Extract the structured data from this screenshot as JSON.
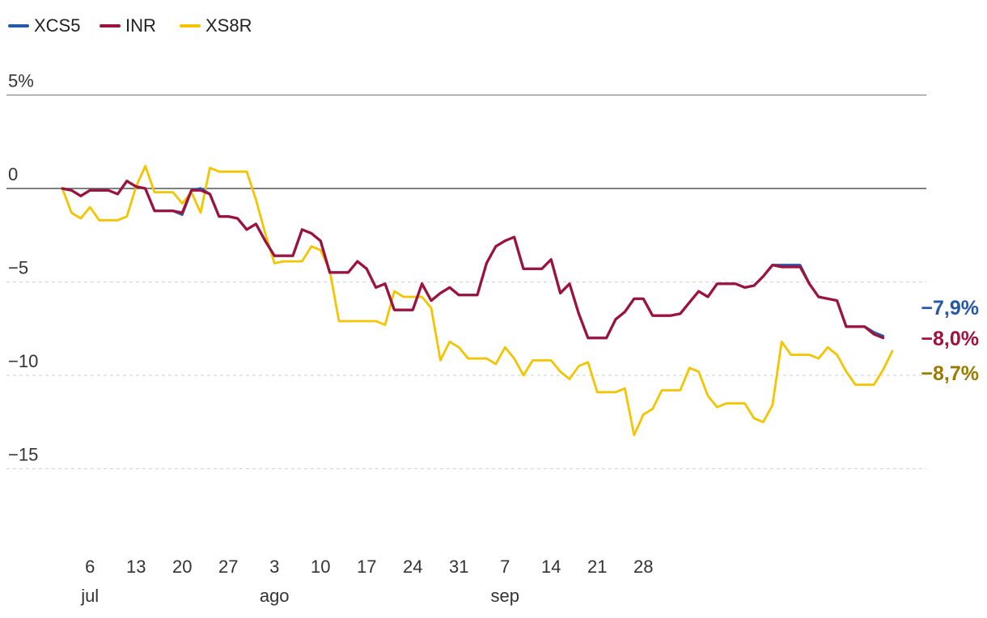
{
  "chart_data": {
    "type": "line",
    "title": "",
    "xlabel": "",
    "ylabel": "",
    "legend_position": "top-left",
    "ylim": [
      -19,
      5
    ],
    "y_ticks": [
      {
        "value": 5,
        "label": "5%"
      },
      {
        "value": 0,
        "label": "0"
      },
      {
        "value": -5,
        "label": "−5"
      },
      {
        "value": -10,
        "label": "−10"
      },
      {
        "value": -15,
        "label": "−15"
      }
    ],
    "x_ticks": [
      {
        "index": 3,
        "label": "6",
        "month": "jul"
      },
      {
        "index": 8,
        "label": "13"
      },
      {
        "index": 13,
        "label": "20"
      },
      {
        "index": 18,
        "label": "27"
      },
      {
        "index": 23,
        "label": "3",
        "month": "ago"
      },
      {
        "index": 28,
        "label": "10"
      },
      {
        "index": 33,
        "label": "17"
      },
      {
        "index": 38,
        "label": "24"
      },
      {
        "index": 43,
        "label": "31"
      },
      {
        "index": 48,
        "label": "7",
        "month": "sep"
      },
      {
        "index": 53,
        "label": "14"
      },
      {
        "index": 58,
        "label": "21"
      },
      {
        "index": 63,
        "label": "28"
      }
    ],
    "series": [
      {
        "name": "XCS5",
        "color": "#2558a8",
        "end_label": "−7,9%",
        "values": [
          0,
          -0.1,
          -0.4,
          -0.1,
          -0.1,
          -0.1,
          -0.3,
          0.4,
          0.1,
          0,
          -1.2,
          -1.2,
          -1.2,
          -1.4,
          -0.1,
          0,
          -0.3,
          -1.5,
          -1.5,
          -1.6,
          -2.2,
          -1.9,
          -2.8,
          -3.6,
          -3.6,
          -3.6,
          -2.2,
          -2.4,
          -2.8,
          -4.5,
          -4.5,
          -4.5,
          -3.9,
          -4.3,
          -5.3,
          -5.1,
          -6.5,
          -6.5,
          -6.5,
          -5.1,
          -6.0,
          -5.6,
          -5.3,
          -5.7,
          -5.7,
          -5.7,
          -4.0,
          -3.1,
          -2.8,
          -2.6,
          -4.3,
          -4.3,
          -4.3,
          -3.8,
          -5.6,
          -5.1,
          -6.7,
          -8.0,
          -8.0,
          -8.0,
          -7.0,
          -6.6,
          -5.9,
          -5.9,
          -6.8,
          -6.8,
          -6.8,
          -6.7,
          -6.1,
          -5.5,
          -5.8,
          -5.1,
          -5.1,
          -5.1,
          -5.3,
          -5.2,
          -4.7,
          -4.1,
          -4.1,
          -4.1,
          -4.1,
          -5.1,
          -5.8,
          -5.9,
          -6.0,
          -7.4,
          -7.4,
          -7.4,
          -7.7,
          -7.9
        ]
      },
      {
        "name": "INR",
        "color": "#a0123e",
        "end_label": "−8,0%",
        "values": [
          0,
          -0.1,
          -0.4,
          -0.1,
          -0.1,
          -0.1,
          -0.3,
          0.4,
          0.1,
          0,
          -1.2,
          -1.2,
          -1.2,
          -1.3,
          -0.1,
          -0.1,
          -0.3,
          -1.5,
          -1.5,
          -1.6,
          -2.2,
          -1.9,
          -2.8,
          -3.6,
          -3.6,
          -3.6,
          -2.2,
          -2.4,
          -2.8,
          -4.5,
          -4.5,
          -4.5,
          -3.9,
          -4.3,
          -5.3,
          -5.1,
          -6.5,
          -6.5,
          -6.5,
          -5.1,
          -6.0,
          -5.6,
          -5.3,
          -5.7,
          -5.7,
          -5.7,
          -4.0,
          -3.1,
          -2.8,
          -2.6,
          -4.3,
          -4.3,
          -4.3,
          -3.8,
          -5.6,
          -5.1,
          -6.7,
          -8.0,
          -8.0,
          -8.0,
          -7.0,
          -6.6,
          -5.9,
          -5.9,
          -6.8,
          -6.8,
          -6.8,
          -6.7,
          -6.1,
          -5.5,
          -5.8,
          -5.1,
          -5.1,
          -5.1,
          -5.3,
          -5.2,
          -4.7,
          -4.1,
          -4.2,
          -4.2,
          -4.2,
          -5.1,
          -5.8,
          -5.9,
          -6.0,
          -7.4,
          -7.4,
          -7.4,
          -7.8,
          -8.0
        ]
      },
      {
        "name": "XS8R",
        "color": "#f2c500",
        "end_label": "−8,7%",
        "label_color": "#9a7b00",
        "values": [
          0,
          -1.3,
          -1.6,
          -1.0,
          -1.7,
          -1.7,
          -1.7,
          -1.5,
          0.1,
          1.2,
          -0.2,
          -0.2,
          -0.2,
          -0.8,
          -0.2,
          -1.3,
          1.1,
          0.9,
          0.9,
          0.9,
          0.9,
          -0.6,
          -2.4,
          -4.0,
          -3.9,
          -3.9,
          -3.9,
          -3.1,
          -3.3,
          -4.4,
          -7.1,
          -7.1,
          -7.1,
          -7.1,
          -7.1,
          -7.3,
          -5.5,
          -5.8,
          -5.8,
          -5.8,
          -6.4,
          -9.2,
          -8.2,
          -8.5,
          -9.1,
          -9.1,
          -9.1,
          -9.4,
          -8.5,
          -9.1,
          -10.0,
          -9.2,
          -9.2,
          -9.2,
          -9.8,
          -10.2,
          -9.5,
          -9.3,
          -10.9,
          -10.9,
          -10.9,
          -10.7,
          -13.2,
          -12.1,
          -11.8,
          -10.8,
          -10.8,
          -10.8,
          -9.6,
          -9.8,
          -11.1,
          -11.7,
          -11.5,
          -11.5,
          -11.5,
          -12.3,
          -12.5,
          -11.6,
          -8.2,
          -8.9,
          -8.9,
          -8.9,
          -9.1,
          -8.5,
          -8.9,
          -9.8,
          -10.5,
          -10.5,
          -10.5,
          -9.7,
          -8.7
        ]
      }
    ]
  }
}
